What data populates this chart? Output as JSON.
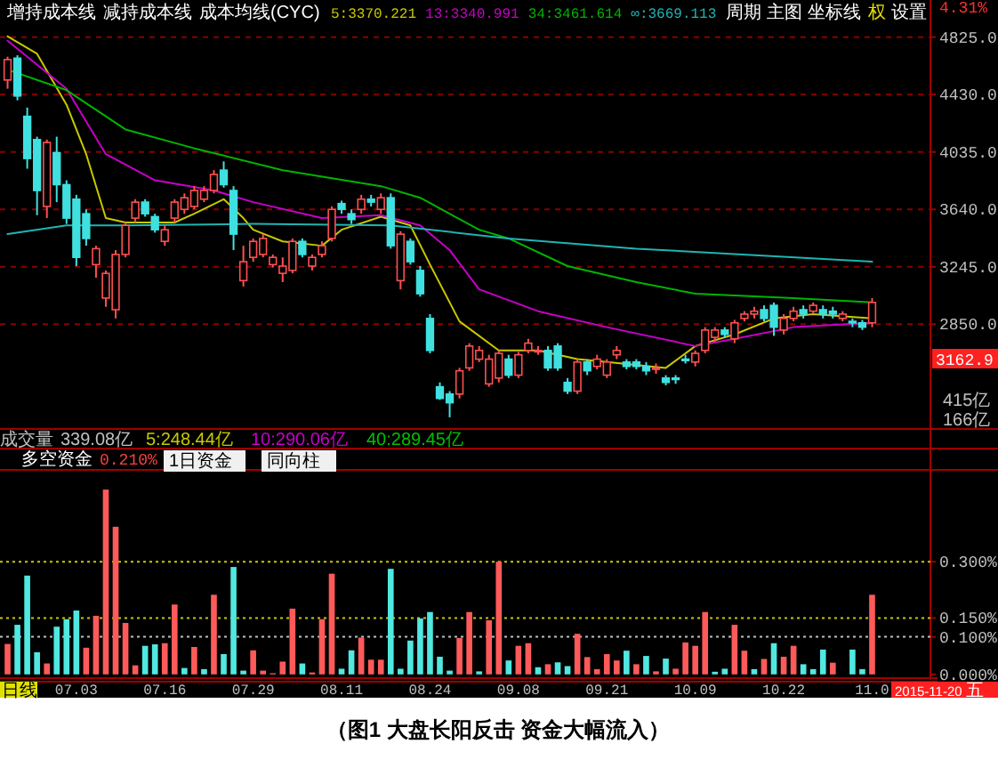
{
  "chart_data": [
    {
      "type": "candlestick",
      "categories": [
        null,
        null,
        null,
        null,
        null,
        null,
        null,
        null,
        null,
        null,
        null,
        null,
        null,
        null,
        null,
        null,
        null,
        null,
        null,
        null,
        null,
        null,
        null,
        null,
        null,
        null,
        null,
        null,
        null,
        null,
        null,
        null,
        null,
        null,
        null,
        null,
        null,
        null,
        null,
        null,
        null,
        null,
        null,
        null,
        null,
        null,
        null,
        null,
        null,
        null,
        null,
        null,
        null,
        null,
        null,
        null,
        null,
        null,
        null,
        null,
        null,
        null,
        null,
        null,
        null,
        null,
        null,
        null,
        null,
        null,
        null,
        null,
        null,
        null,
        null,
        null,
        null,
        null,
        null,
        null,
        null,
        null,
        null,
        null,
        null,
        null,
        null,
        null,
        null
      ],
      "ohlc": [
        [
          4530,
          4690,
          4470,
          4670
        ],
        [
          4680,
          4700,
          4390,
          4420
        ],
        [
          4280,
          4340,
          3920,
          3990
        ],
        [
          4120,
          4140,
          3600,
          3770
        ],
        [
          3660,
          4120,
          3580,
          4100
        ],
        [
          4030,
          4140,
          3690,
          3810
        ],
        [
          3810,
          3840,
          3540,
          3580
        ],
        [
          3710,
          3740,
          3250,
          3310
        ],
        [
          3610,
          3640,
          3390,
          3440
        ],
        [
          3260,
          3390,
          3170,
          3370
        ],
        [
          3030,
          3220,
          2970,
          3200
        ],
        [
          2950,
          3360,
          2890,
          3330
        ],
        [
          3330,
          3550,
          3310,
          3530
        ],
        [
          3580,
          3710,
          3550,
          3690
        ],
        [
          3690,
          3710,
          3590,
          3610
        ],
        [
          3590,
          3610,
          3480,
          3500
        ],
        [
          3420,
          3530,
          3390,
          3500
        ],
        [
          3580,
          3710,
          3550,
          3690
        ],
        [
          3640,
          3750,
          3610,
          3720
        ],
        [
          3660,
          3800,
          3640,
          3770
        ],
        [
          3710,
          3800,
          3690,
          3770
        ],
        [
          3770,
          3910,
          3750,
          3880
        ],
        [
          3910,
          3970,
          3790,
          3810
        ],
        [
          3770,
          3800,
          3360,
          3470
        ],
        [
          3150,
          3390,
          3110,
          3280
        ],
        [
          3310,
          3440,
          3280,
          3420
        ],
        [
          3330,
          3470,
          3310,
          3440
        ],
        [
          3260,
          3330,
          3240,
          3310
        ],
        [
          3200,
          3310,
          3140,
          3250
        ],
        [
          3220,
          3440,
          3200,
          3420
        ],
        [
          3420,
          3440,
          3310,
          3330
        ],
        [
          3250,
          3330,
          3220,
          3310
        ],
        [
          3330,
          3420,
          3310,
          3390
        ],
        [
          3440,
          3660,
          3420,
          3640
        ],
        [
          3680,
          3700,
          3610,
          3640
        ],
        [
          3610,
          3640,
          3540,
          3570
        ],
        [
          3640,
          3740,
          3610,
          3710
        ],
        [
          3710,
          3740,
          3660,
          3690
        ],
        [
          3640,
          3750,
          3610,
          3720
        ],
        [
          3720,
          3750,
          3370,
          3390
        ],
        [
          3150,
          3490,
          3090,
          3470
        ],
        [
          3420,
          3440,
          3260,
          3280
        ],
        [
          3220,
          3250,
          3040,
          3060
        ],
        [
          2890,
          2920,
          2650,
          2670
        ],
        [
          2420,
          2450,
          2330,
          2340
        ],
        [
          2370,
          2390,
          2210,
          2310
        ],
        [
          2370,
          2550,
          2340,
          2530
        ],
        [
          2550,
          2720,
          2530,
          2700
        ],
        [
          2610,
          2700,
          2590,
          2670
        ],
        [
          2440,
          2640,
          2420,
          2610
        ],
        [
          2480,
          2670,
          2450,
          2650
        ],
        [
          2610,
          2640,
          2480,
          2500
        ],
        [
          2500,
          2660,
          2480,
          2640
        ],
        [
          2670,
          2750,
          2650,
          2720
        ],
        [
          2660,
          2700,
          2640,
          2670
        ],
        [
          2670,
          2700,
          2530,
          2550
        ],
        [
          2700,
          2720,
          2530,
          2550
        ],
        [
          2450,
          2480,
          2370,
          2390
        ],
        [
          2390,
          2610,
          2370,
          2590
        ],
        [
          2590,
          2610,
          2500,
          2530
        ],
        [
          2560,
          2640,
          2540,
          2610
        ],
        [
          2500,
          2610,
          2480,
          2590
        ],
        [
          2640,
          2700,
          2610,
          2670
        ],
        [
          2590,
          2610,
          2540,
          2560
        ],
        [
          2590,
          2610,
          2540,
          2560
        ],
        [
          2560,
          2590,
          2500,
          2530
        ],
        [
          2540,
          2580,
          2510,
          2550
        ],
        [
          2480,
          2500,
          2430,
          2450
        ],
        [
          2480,
          2500,
          2440,
          2470
        ],
        [
          2610,
          2640,
          2580,
          2600
        ],
        [
          2590,
          2670,
          2560,
          2650
        ],
        [
          2670,
          2830,
          2650,
          2810
        ],
        [
          2760,
          2830,
          2730,
          2810
        ],
        [
          2810,
          2830,
          2760,
          2780
        ],
        [
          2750,
          2880,
          2720,
          2860
        ],
        [
          2890,
          2940,
          2870,
          2920
        ],
        [
          2920,
          2970,
          2890,
          2940
        ],
        [
          2950,
          2980,
          2870,
          2890
        ],
        [
          2980,
          3000,
          2770,
          2830
        ],
        [
          2810,
          2920,
          2780,
          2890
        ],
        [
          2890,
          2970,
          2870,
          2940
        ],
        [
          2950,
          2980,
          2890,
          2920
        ],
        [
          2940,
          3000,
          2920,
          2980
        ],
        [
          2950,
          2980,
          2890,
          2920
        ],
        [
          2940,
          2970,
          2890,
          2920
        ],
        [
          2890,
          2940,
          2870,
          2920
        ],
        [
          2870,
          2890,
          2830,
          2860
        ],
        [
          2860,
          2880,
          2810,
          2830
        ],
        [
          2860,
          3030,
          2830,
          3000
        ]
      ],
      "colors": [
        "#ff5050",
        "#40e0e0",
        "#40e0e0",
        "#40e0e0",
        "#ff5050",
        "#40e0e0",
        "#40e0e0",
        "#40e0e0",
        "#40e0e0",
        "#ff5050",
        "#ff5050",
        "#ff5050",
        "#ff5050",
        "#ff5050",
        "#40e0e0",
        "#40e0e0",
        "#ff5050",
        "#ff5050",
        "#ff5050",
        "#ff5050",
        "#ff5050",
        "#ff5050",
        "#40e0e0",
        "#40e0e0",
        "#ff5050",
        "#ff5050",
        "#ff5050",
        "#ff5050",
        "#ff5050",
        "#ff5050",
        "#40e0e0",
        "#ff5050",
        "#ff5050",
        "#ff5050",
        "#40e0e0",
        "#40e0e0",
        "#ff5050",
        "#40e0e0",
        "#ff5050",
        "#40e0e0",
        "#ff5050",
        "#40e0e0",
        "#40e0e0",
        "#40e0e0",
        "#40e0e0",
        "#40e0e0",
        "#ff5050",
        "#ff5050",
        "#ff5050",
        "#ff5050",
        "#ff5050",
        "#40e0e0",
        "#ff5050",
        "#ff5050",
        "#ff5050",
        "#40e0e0",
        "#40e0e0",
        "#40e0e0",
        "#ff5050",
        "#40e0e0",
        "#ff5050",
        "#ff5050",
        "#ff5050",
        "#40e0e0",
        "#40e0e0",
        "#40e0e0",
        "#ff5050",
        "#40e0e0",
        "#40e0e0",
        "#40e0e0",
        "#ff5050",
        "#ff5050",
        "#ff5050",
        "#40e0e0",
        "#ff5050",
        "#ff5050",
        "#ff5050",
        "#40e0e0",
        "#40e0e0",
        "#ff5050",
        "#ff5050",
        "#40e0e0",
        "#ff5050",
        "#40e0e0",
        "#40e0e0",
        "#ff5050",
        "#40e0e0",
        "#40e0e0",
        "#ff5050"
      ],
      "series": [
        {
          "name": "5:3370.221",
          "type": "line",
          "color": "#c8c800",
          "values": [
            4830,
            null,
            null,
            4710,
            null,
            null,
            4360,
            null,
            4020,
            null,
            3580,
            null,
            3550,
            null,
            null,
            3550,
            null,
            3550,
            null,
            3610,
            null,
            null,
            3710,
            null,
            3580,
            3500,
            null,
            null,
            3420,
            null,
            null,
            null,
            3390,
            null,
            3500,
            null,
            null,
            null,
            3590,
            null,
            null,
            3530,
            null,
            3260,
            null,
            null,
            2870,
            null,
            null,
            null,
            2670,
            null,
            null,
            null,
            2670,
            null,
            null,
            null,
            2610,
            null,
            null,
            2590,
            null,
            null,
            null,
            null,
            null,
            2550,
            null,
            null,
            2700,
            null,
            null,
            null,
            2780,
            null,
            null,
            null,
            2890,
            null,
            null,
            null,
            2920,
            null,
            null,
            null,
            null,
            null,
            2890
          ]
        },
        {
          "name": "13:3340.991",
          "type": "line",
          "color": "#c800c8",
          "values": [
            4800,
            null,
            null,
            null,
            null,
            null,
            4470,
            null,
            null,
            null,
            4020,
            null,
            null,
            null,
            null,
            3840,
            null,
            null,
            null,
            null,
            null,
            3770,
            null,
            null,
            null,
            3690,
            null,
            null,
            null,
            null,
            null,
            null,
            3580,
            null,
            null,
            null,
            null,
            null,
            3600,
            null,
            null,
            null,
            3530,
            null,
            null,
            3360,
            null,
            null,
            3090,
            null,
            null,
            null,
            null,
            null,
            2940,
            null,
            null,
            null,
            null,
            null,
            null,
            2830,
            null,
            null,
            null,
            null,
            null,
            null,
            null,
            null,
            2700,
            null,
            null,
            null,
            2750,
            null,
            null,
            null,
            null,
            null,
            2830,
            null,
            null,
            null,
            null,
            null,
            null,
            null,
            2860
          ]
        },
        {
          "name": "34:3461.614",
          "type": "line",
          "color": "#00b400",
          "values": [
            4600,
            null,
            null,
            null,
            null,
            null,
            4460,
            null,
            null,
            null,
            null,
            null,
            4190,
            null,
            null,
            null,
            null,
            null,
            null,
            4060,
            null,
            null,
            4010,
            null,
            null,
            null,
            null,
            null,
            3910,
            null,
            null,
            null,
            null,
            null,
            null,
            null,
            null,
            null,
            3800,
            null,
            null,
            null,
            3720,
            null,
            null,
            null,
            null,
            null,
            3500,
            null,
            null,
            3440,
            null,
            null,
            null,
            null,
            null,
            3250,
            null,
            null,
            null,
            null,
            null,
            null,
            3140,
            null,
            null,
            null,
            null,
            null,
            3060,
            null,
            null,
            null,
            null,
            null,
            null,
            null,
            null,
            null,
            3030,
            null,
            null,
            null,
            null,
            null,
            null,
            null,
            3000
          ]
        },
        {
          "name": "∞:3669.113",
          "type": "line",
          "color": "#20b4b4",
          "values": [
            3470,
            null,
            null,
            null,
            null,
            null,
            3530,
            null,
            null,
            null,
            null,
            null,
            3530,
            null,
            null,
            null,
            null,
            null,
            null,
            null,
            null,
            null,
            null,
            null,
            null,
            3540,
            null,
            null,
            null,
            null,
            null,
            null,
            null,
            null,
            null,
            null,
            null,
            null,
            null,
            3530,
            null,
            null,
            null,
            null,
            null,
            null,
            null,
            null,
            null,
            null,
            null,
            3440,
            null,
            null,
            null,
            null,
            null,
            null,
            null,
            null,
            null,
            null,
            null,
            null,
            3370,
            null,
            null,
            null,
            null,
            null,
            null,
            null,
            null,
            null,
            null,
            null,
            null,
            null,
            null,
            null,
            null,
            null,
            null,
            null,
            null,
            null,
            null,
            null,
            3280
          ]
        }
      ],
      "ylim": [
        2130,
        5080
      ],
      "yticks": [
        {
          "value": 4825,
          "label": "4825.0"
        },
        {
          "value": 4430,
          "label": "4430.0"
        },
        {
          "value": 4035,
          "label": "4035.0"
        },
        {
          "value": 3640,
          "label": "3640.0"
        },
        {
          "value": 3245,
          "label": "3245.0"
        },
        {
          "value": 2850,
          "label": "2850.0"
        }
      ],
      "grid": "y",
      "legend": "top",
      "tick_labels": "y",
      "annotations": [
        "增持成本线",
        "减持成本线",
        "成本均线(CYC)",
        "周期",
        "主图",
        "坐标线",
        "权",
        "设置",
        "4.31%",
        "3162.9",
        "415亿",
        "166亿",
        "成交量",
        "339.08亿",
        "5:248.44亿",
        "10:290.06亿",
        "40:289.45亿"
      ]
    },
    {
      "type": "bar",
      "title": "多空资金",
      "categories": [
        null,
        null,
        null,
        null,
        null,
        null,
        null,
        "07.03",
        null,
        null,
        null,
        null,
        null,
        null,
        null,
        null,
        "07.16",
        null,
        null,
        null,
        null,
        null,
        null,
        null,
        null,
        "07.29",
        null,
        null,
        null,
        null,
        null,
        null,
        null,
        null,
        "08.11",
        null,
        null,
        null,
        null,
        null,
        null,
        null,
        null,
        "08.24",
        null,
        null,
        null,
        null,
        null,
        null,
        null,
        null,
        "09.08",
        null,
        null,
        null,
        null,
        null,
        null,
        null,
        null,
        "09.21",
        null,
        null,
        null,
        null,
        null,
        null,
        null,
        null,
        "10.09",
        null,
        null,
        null,
        null,
        null,
        null,
        null,
        null,
        "10.22",
        null,
        null,
        null,
        null,
        null,
        null,
        null,
        null,
        "11.0"
      ],
      "values": [
        0.081,
        0.132,
        0.263,
        0.059,
        0.029,
        0.127,
        0.147,
        0.17,
        0.071,
        0.156,
        0.492,
        0.393,
        0.137,
        0.024,
        0.076,
        0.08,
        0.083,
        0.186,
        0.017,
        0.073,
        0.014,
        0.212,
        0.054,
        0.286,
        0.01,
        0.064,
        0.01,
        0.003,
        0.034,
        0.175,
        0.029,
        0.005,
        0.147,
        0.268,
        0.015,
        0.064,
        0.098,
        0.039,
        0.039,
        0.281,
        0.015,
        0.09,
        0.149,
        0.166,
        0.047,
        0.01,
        0.097,
        0.166,
        0.008,
        0.144,
        0.3,
        0.037,
        0.076,
        0.083,
        0.019,
        0.027,
        0.032,
        0.022,
        0.108,
        0.046,
        0.014,
        0.054,
        0.037,
        0.063,
        0.027,
        0.049,
        0.008,
        0.042,
        0.015,
        0.085,
        0.076,
        0.166,
        0.007,
        0.015,
        0.132,
        0.063,
        0.014,
        0.041,
        0.083,
        0.047,
        0.076,
        0.027,
        0.014,
        0.066,
        0.031,
        0,
        0.066,
        0.014,
        0.212
      ],
      "colors": [
        "#ff5a5a",
        "#50e8e0",
        "#50e8e0",
        "#50e8e0",
        "#ff5a5a",
        "#50e8e0",
        "#50e8e0",
        "#50e8e0",
        "#ff5a5a",
        "#ff5a5a",
        "#ff5a5a",
        "#ff5a5a",
        "#ff5a5a",
        "#ff5a5a",
        "#50e8e0",
        "#50e8e0",
        "#ff5a5a",
        "#ff5a5a",
        "#50e8e0",
        "#ff5a5a",
        "#50e8e0",
        "#ff5a5a",
        "#50e8e0",
        "#50e8e0",
        "#50e8e0",
        "#ff5a5a",
        "#ff5a5a",
        "#ff5a5a",
        "#ff5a5a",
        "#ff5a5a",
        "#50e8e0",
        "#ff5a5a",
        "#ff5a5a",
        "#ff5a5a",
        "#50e8e0",
        "#50e8e0",
        "#ff5a5a",
        "#ff5a5a",
        "#ff5a5a",
        "#50e8e0",
        "#50e8e0",
        "#50e8e0",
        "#50e8e0",
        "#50e8e0",
        "#50e8e0",
        "#50e8e0",
        "#ff5a5a",
        "#ff5a5a",
        "#50e8e0",
        "#ff5a5a",
        "#ff5a5a",
        "#50e8e0",
        "#ff5a5a",
        "#ff5a5a",
        "#50e8e0",
        "#ff5a5a",
        "#50e8e0",
        "#50e8e0",
        "#ff5a5a",
        "#ff5a5a",
        "#ff5a5a",
        "#ff5a5a",
        "#ff5a5a",
        "#50e8e0",
        "#ff5a5a",
        "#50e8e0",
        "#ff5a5a",
        "#50e8e0",
        "#ff5a5a",
        "#ff5a5a",
        "#ff5a5a",
        "#ff5a5a",
        "#50e8e0",
        "#50e8e0",
        "#ff5a5a",
        "#ff5a5a",
        "#50e8e0",
        "#ff5a5a",
        "#50e8e0",
        "#ff5a5a",
        "#ff5a5a",
        "#50e8e0",
        "#50e8e0",
        "#50e8e0",
        "#ff5a5a",
        "#50e8e0",
        "#50e8e0",
        "#50e8e0",
        "#ff5a5a"
      ],
      "ylim": [
        -0.01,
        0.535
      ],
      "yticks": [
        {
          "value": 0,
          "label": "0.000%"
        },
        {
          "value": 0.1,
          "label": "0.100%"
        },
        {
          "value": 0.15,
          "label": "0.150%"
        },
        {
          "value": 0.3,
          "label": "0.300%"
        }
      ],
      "ref_lines": [
        {
          "axis": "y",
          "value": 0.3,
          "color": "#c8c800",
          "line_style": "dotted"
        },
        {
          "axis": "y",
          "value": 0.15,
          "color": "#c8c800",
          "line_style": "dotted"
        },
        {
          "axis": "y",
          "value": 0.1,
          "color": "#c0c0c0",
          "line_style": "dotted"
        }
      ],
      "annotations": [
        "0.210%",
        "1日资金",
        "同向柱",
        "日线",
        "2015-11-20 五",
        "（图1  大盘长阳反击  资金大幅流入）"
      ]
    }
  ]
}
